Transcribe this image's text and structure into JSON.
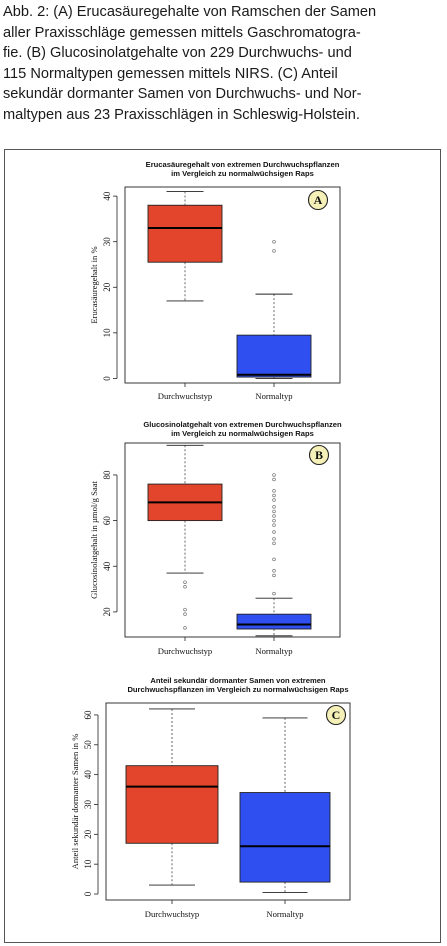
{
  "caption": {
    "lines": [
      "Abb. 2: (A) Erucasäuregehalte von Ramschen der Samen",
      "aller Praxisschläge gemessen mittels Gaschromatogra-",
      "fie. (B) Glucosinolatgehalte von 229 Durchwuchs- und",
      "115 Normaltypen gemessen mittels NIRS. (C) Anteil",
      "sekundär dormanter Samen von Durchwuchs- und Nor-",
      "maltypen aus 23 Praxisschlägen in Schleswig-Holstein."
    ]
  },
  "colors": {
    "durchwuchs": "#e2452b",
    "normal": "#2f4ff0",
    "badge_fill": "#f4f0b8"
  },
  "chart_data": [
    {
      "type": "box",
      "panel_label": "A",
      "title": [
        "Erucasäuregehalt von extremen Durchwuchspflanzen",
        "im Vergleich zu normalwüchsigen Raps"
      ],
      "ylabel": "Erucasäuregehalt in %",
      "ylim": [
        -1,
        42
      ],
      "yticks": [
        0,
        10,
        20,
        30,
        40
      ],
      "categories": [
        "Durchwuchstyp",
        "Normaltyp"
      ],
      "boxes": [
        {
          "name": "Durchwuchstyp",
          "min": 17,
          "q1": 25.5,
          "median": 33,
          "q3": 38,
          "max": 41,
          "outliers": []
        },
        {
          "name": "Normaltyp",
          "min": 0,
          "q1": 0.3,
          "median": 0.8,
          "q3": 9.5,
          "max": 18.5,
          "outliers": [
            28,
            30
          ]
        }
      ]
    },
    {
      "type": "box",
      "panel_label": "B",
      "title": [
        "Glucosinolatgehalt von extremen Durchwuchspflanzen",
        "im Vergleich zu normalwüchsigen Raps"
      ],
      "ylabel": "Glucosinolatgehalt in µmol/g Saat",
      "ylim": [
        9,
        94
      ],
      "yticks": [
        20,
        40,
        60,
        80
      ],
      "categories": [
        "Durchwuchstyp",
        "Normaltyp"
      ],
      "boxes": [
        {
          "name": "Durchwuchstyp",
          "min": 37,
          "q1": 60,
          "median": 68,
          "q3": 76,
          "max": 93,
          "outliers": [
            13,
            19,
            21,
            31,
            33
          ]
        },
        {
          "name": "Normaltyp",
          "min": 9.5,
          "q1": 12.5,
          "median": 14.5,
          "q3": 19,
          "max": 26,
          "outliers": [
            28,
            36,
            38,
            43,
            50,
            52,
            55,
            58,
            60,
            62,
            64,
            66,
            69,
            71,
            73,
            78,
            80
          ]
        }
      ]
    },
    {
      "type": "box",
      "panel_label": "C",
      "title": [
        "Anteil sekundär dormanter Samen von extremen",
        "Durchwuchspflanzen im Vergleich zu normalwüchsigen Raps"
      ],
      "ylabel": "Anteil sekundär dormanter Samen in %",
      "ylim": [
        -2,
        64
      ],
      "yticks": [
        0,
        10,
        20,
        30,
        40,
        50,
        60
      ],
      "categories": [
        "Durchwuchstyp",
        "Normaltyp"
      ],
      "boxes": [
        {
          "name": "Durchwuchstyp",
          "min": 3,
          "q1": 17,
          "median": 36,
          "q3": 43,
          "max": 62,
          "outliers": []
        },
        {
          "name": "Normaltyp",
          "min": 0.5,
          "q1": 4,
          "median": 16,
          "q3": 34,
          "max": 59,
          "outliers": []
        }
      ]
    }
  ]
}
